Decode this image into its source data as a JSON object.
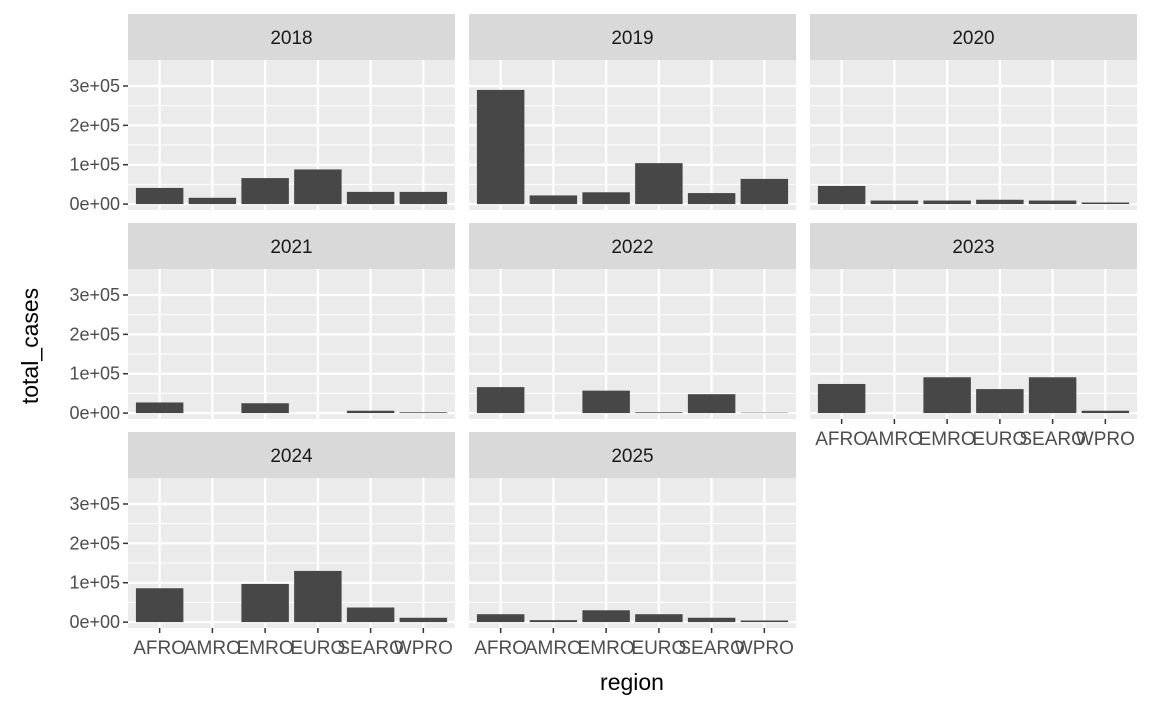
{
  "chart_data": {
    "type": "bar",
    "facet_by": "year",
    "xlabel": "region",
    "ylabel": "total_cases",
    "ylim": [
      0,
      300000
    ],
    "y_ticks": [
      {
        "value": 0,
        "label": "0e+00"
      },
      {
        "value": 100000,
        "label": "1e+05"
      },
      {
        "value": 200000,
        "label": "2e+05"
      },
      {
        "value": 300000,
        "label": "3e+05"
      }
    ],
    "categories": [
      "AFRO",
      "AMRO",
      "EMRO",
      "EURO",
      "SEARO",
      "WPRO"
    ],
    "grid": true,
    "bar_color": "#474747",
    "panel_background": "#ebebeb",
    "strip_background": "#d9d9d9",
    "facets": [
      {
        "label": "2018",
        "values": [
          41000,
          16000,
          66000,
          88000,
          31000,
          31000
        ]
      },
      {
        "label": "2019",
        "values": [
          290000,
          22000,
          30000,
          104000,
          28000,
          64000
        ]
      },
      {
        "label": "2020",
        "values": [
          46000,
          9000,
          9000,
          11000,
          9000,
          4000
        ]
      },
      {
        "label": "2021",
        "values": [
          27000,
          0,
          25000,
          0,
          6000,
          2000
        ]
      },
      {
        "label": "2022",
        "values": [
          66000,
          0,
          57000,
          2000,
          48000,
          1000
        ]
      },
      {
        "label": "2023",
        "values": [
          74000,
          0,
          91000,
          61000,
          91000,
          6000
        ]
      },
      {
        "label": "2024",
        "values": [
          86000,
          0,
          97000,
          130000,
          37000,
          11000
        ]
      },
      {
        "label": "2025",
        "values": [
          20000,
          5000,
          30000,
          20000,
          11000,
          4000
        ]
      }
    ]
  }
}
